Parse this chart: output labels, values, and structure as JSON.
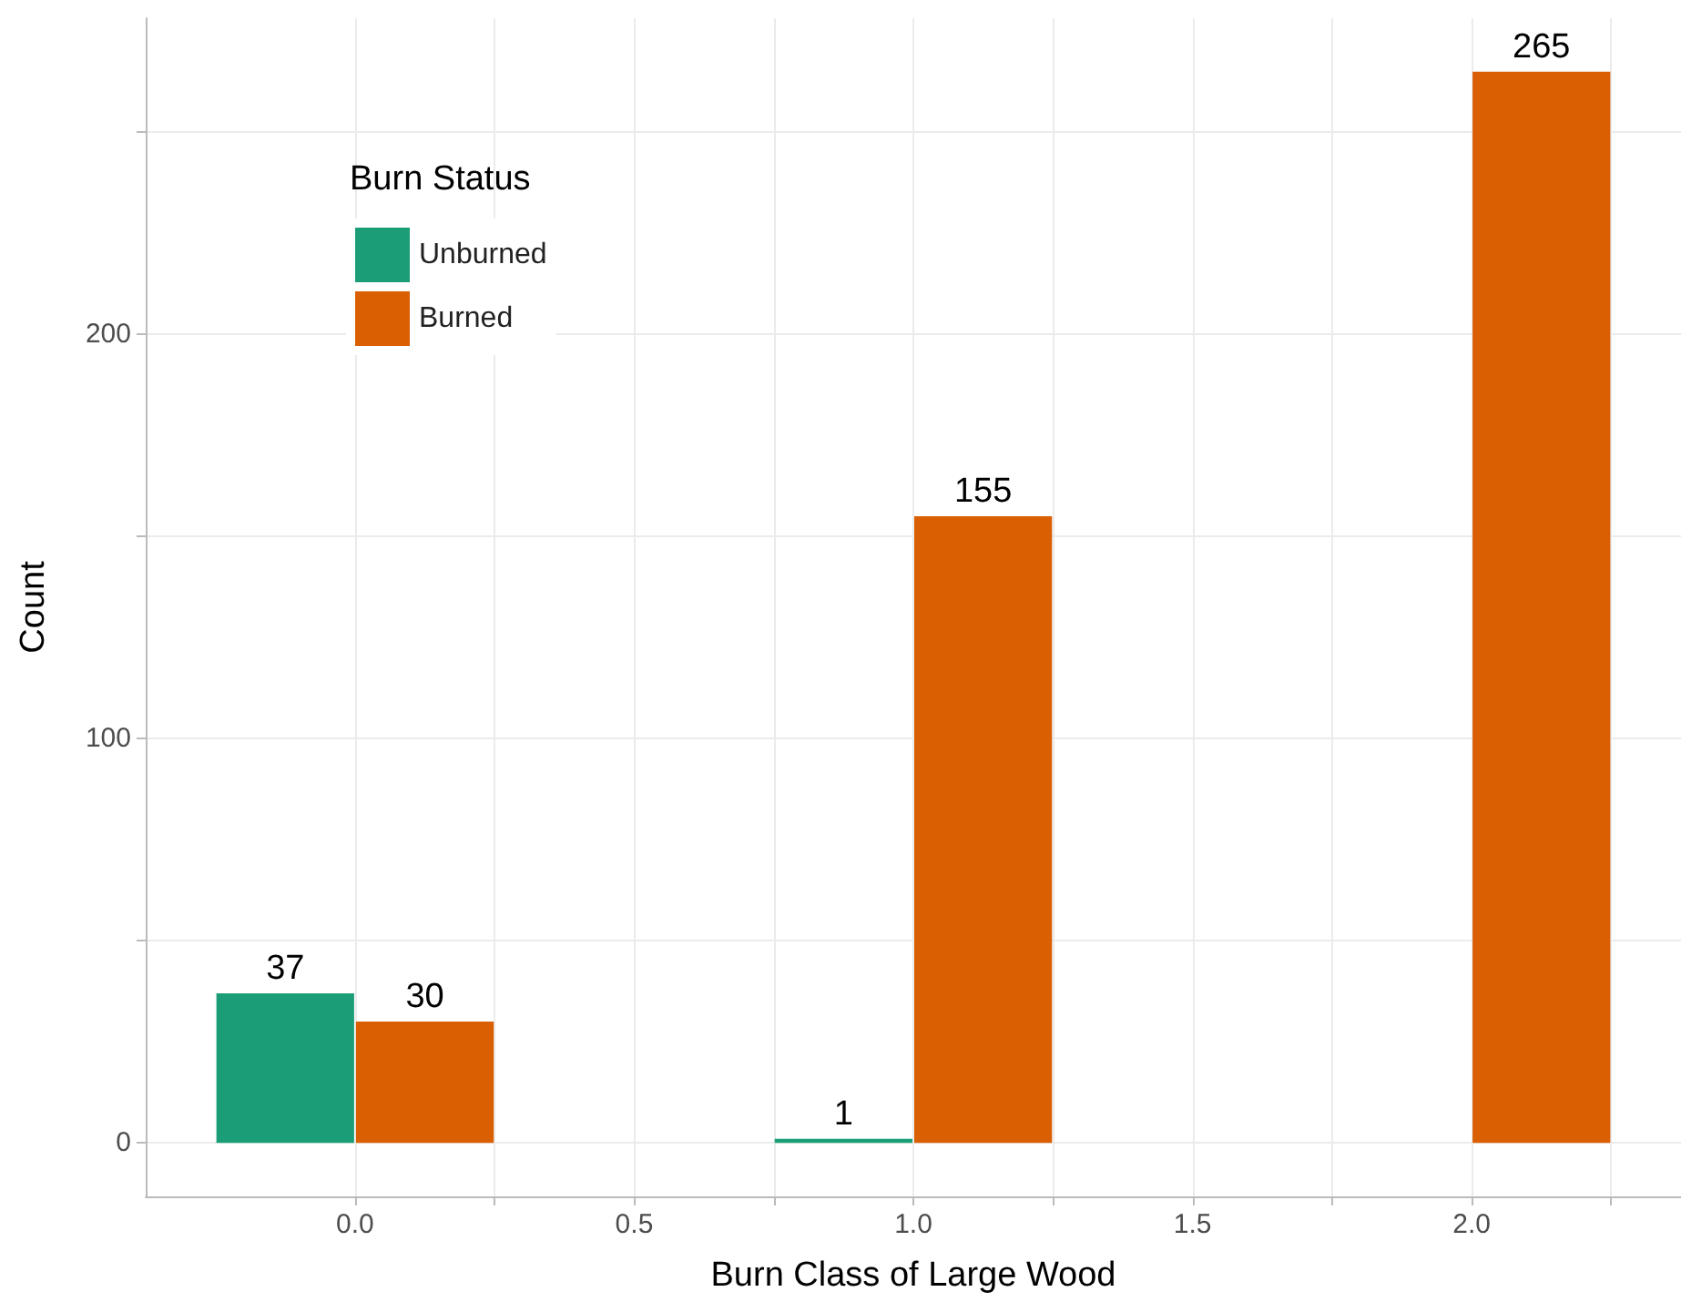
{
  "chart_data": {
    "type": "bar",
    "xlabel": "Burn Class of Large Wood",
    "ylabel": "Count",
    "legend_title": "Burn Status",
    "x": [
      0,
      1,
      2
    ],
    "series": [
      {
        "name": "Unburned",
        "color": "#1b9e77",
        "values": [
          37,
          1,
          null
        ]
      },
      {
        "name": "Burned",
        "color": "#d95f02",
        "values": [
          30,
          155,
          265
        ]
      }
    ],
    "xlim": [
      -0.375,
      2.375
    ],
    "ylim": [
      -13.25,
      278.25
    ],
    "xticks": [
      {
        "value": 0,
        "label": "0.0"
      },
      {
        "value": 0.25,
        "label": null
      },
      {
        "value": 0.5,
        "label": "0.5"
      },
      {
        "value": 0.75,
        "label": null
      },
      {
        "value": 1,
        "label": "1.0"
      },
      {
        "value": 1.25,
        "label": null
      },
      {
        "value": 1.5,
        "label": "1.5"
      },
      {
        "value": 1.75,
        "label": null
      },
      {
        "value": 2,
        "label": "2.0"
      },
      {
        "value": 2.25,
        "label": null
      }
    ],
    "yticks": [
      0,
      {
        "value": 50,
        "label": null
      },
      100,
      {
        "value": 150,
        "label": null
      },
      200,
      {
        "value": 250,
        "label": null
      }
    ],
    "grid": true,
    "legend": "top left",
    "data_labels": true
  }
}
